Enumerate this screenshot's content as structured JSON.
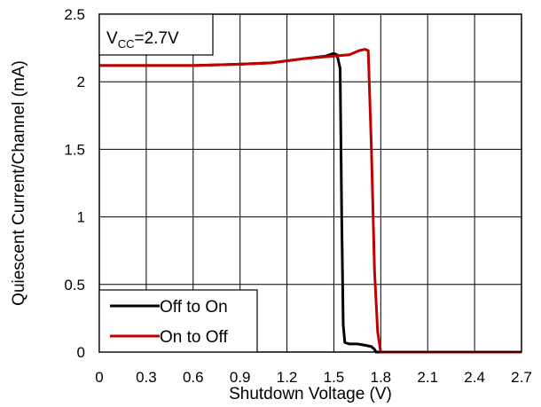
{
  "chart_data": {
    "type": "line",
    "xlabel": "Shutdown Voltage (V)",
    "ylabel": "Quiescent Current/Channel (mA)",
    "xlim": [
      0,
      2.7
    ],
    "ylim": [
      0,
      2.5
    ],
    "xticks": [
      "0",
      "0.3",
      "0.6",
      "0.9",
      "1.2",
      "1.5",
      "1.8",
      "2.1",
      "2.4",
      "2.7"
    ],
    "yticks": [
      "0",
      "0.5",
      "1",
      "1.5",
      "2",
      "2.5"
    ],
    "grid": true,
    "legend_position": "bottom-left",
    "annotation": {
      "prefix": "V",
      "subscript": "CC",
      "suffix": "=2.7V"
    },
    "series": [
      {
        "name": "Off to On",
        "color": "#000000",
        "points": [
          [
            0,
            2.12
          ],
          [
            0.3,
            2.12
          ],
          [
            0.6,
            2.12
          ],
          [
            0.9,
            2.13
          ],
          [
            1.1,
            2.14
          ],
          [
            1.3,
            2.17
          ],
          [
            1.45,
            2.19
          ],
          [
            1.5,
            2.21
          ],
          [
            1.52,
            2.2
          ],
          [
            1.54,
            2.1
          ],
          [
            1.55,
            1.0
          ],
          [
            1.56,
            0.2
          ],
          [
            1.57,
            0.07
          ],
          [
            1.6,
            0.06
          ],
          [
            1.65,
            0.06
          ],
          [
            1.7,
            0.05
          ],
          [
            1.74,
            0.04
          ],
          [
            1.76,
            0.02
          ],
          [
            1.77,
            0.0
          ],
          [
            2.0,
            0.0
          ],
          [
            2.4,
            0.0
          ],
          [
            2.7,
            0.0
          ]
        ]
      },
      {
        "name": "On to Off",
        "color": "#c00000",
        "points": [
          [
            0,
            2.12
          ],
          [
            0.3,
            2.12
          ],
          [
            0.6,
            2.12
          ],
          [
            0.9,
            2.13
          ],
          [
            1.1,
            2.14
          ],
          [
            1.3,
            2.17
          ],
          [
            1.5,
            2.19
          ],
          [
            1.6,
            2.2
          ],
          [
            1.66,
            2.23
          ],
          [
            1.7,
            2.24
          ],
          [
            1.72,
            2.23
          ],
          [
            1.74,
            1.5
          ],
          [
            1.76,
            0.6
          ],
          [
            1.78,
            0.15
          ],
          [
            1.8,
            0.0
          ],
          [
            2.1,
            0.0
          ],
          [
            2.4,
            0.0
          ],
          [
            2.7,
            0.0
          ]
        ]
      }
    ]
  }
}
